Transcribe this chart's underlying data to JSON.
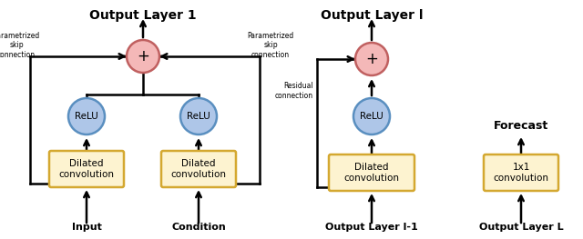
{
  "bg_color": "#ffffff",
  "title1": "Output Layer 1",
  "title2": "Output Layer l",
  "label_input": "Input",
  "label_condition": "Condition",
  "label_output_l1": "Output Layer l-1",
  "label_output_ll": "Output Layer L",
  "label_forecast": "Forecast",
  "label_residual": "Residual\nconnection",
  "label_param_skip_left": "Parametrized\nskip\nconnection",
  "label_param_skip_right": "Parametrized\nskip\nconnection",
  "relu_color": "#aec6e8",
  "relu_edge_color": "#5a8fc0",
  "plus_color": "#f4b8b8",
  "plus_edge_color": "#c06060",
  "box_face_color": "#fdf3d0",
  "box_edge_color": "#d4a830",
  "arrow_color": "#000000",
  "line_color": "#000000",
  "text_color": "#000000"
}
